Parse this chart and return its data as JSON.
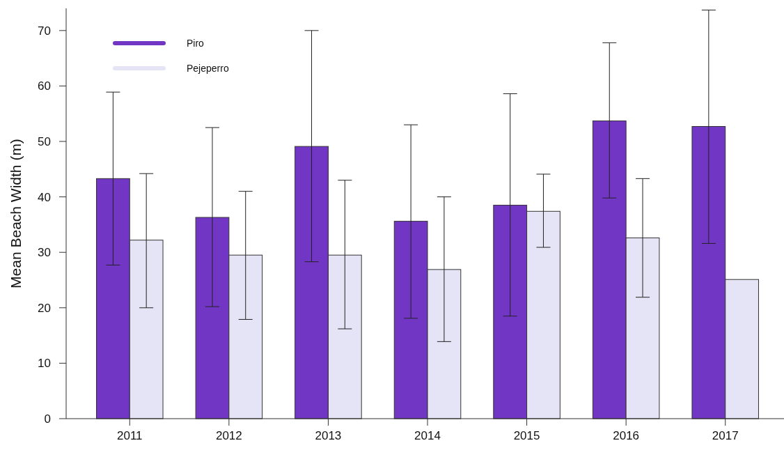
{
  "chart_data": {
    "type": "bar",
    "ylabel": "Mean Beach Width (m)",
    "categories": [
      "2011",
      "2012",
      "2013",
      "2014",
      "2015",
      "2016",
      "2017"
    ],
    "series": [
      {
        "name": "Piro",
        "color": "#7236c4",
        "values": [
          43.3,
          36.3,
          49.1,
          35.6,
          38.5,
          53.7,
          52.7
        ],
        "errors": [
          [
            27.7,
            58.9
          ],
          [
            20.2,
            52.5
          ],
          [
            28.3,
            70.0
          ],
          [
            18.1,
            53.0
          ],
          [
            18.5,
            58.6
          ],
          [
            39.8,
            67.8
          ],
          [
            31.6,
            73.7
          ]
        ]
      },
      {
        "name": "Pejeperro",
        "color": "#e4e4f6",
        "values": [
          32.2,
          29.5,
          29.5,
          26.9,
          37.4,
          32.6,
          25.1
        ],
        "errors": [
          [
            20.0,
            44.2
          ],
          [
            17.9,
            41.0
          ],
          [
            16.2,
            43.0
          ],
          [
            13.9,
            40.0
          ],
          [
            30.9,
            44.1
          ],
          [
            21.9,
            43.3
          ],
          null
        ]
      }
    ],
    "ylim": [
      0,
      74
    ],
    "yticks": [
      0,
      10,
      20,
      30,
      40,
      50,
      60,
      70
    ],
    "grid": false,
    "legend": "top left"
  }
}
